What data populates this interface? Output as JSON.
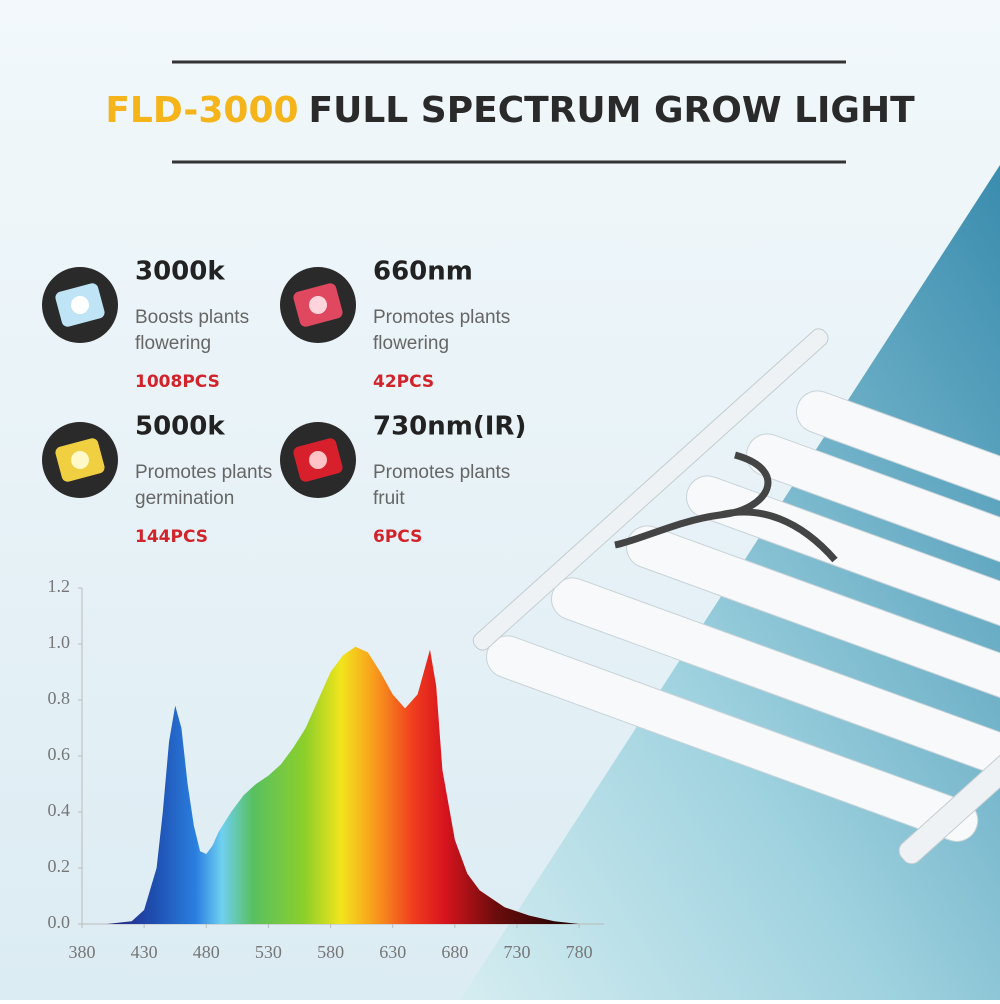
{
  "header": {
    "model": "FLD-3000",
    "title": "FULL SPECTRUM GROW LIGHT"
  },
  "features": [
    {
      "title": "3000k",
      "desc": [
        "Boosts plants",
        "flowering"
      ],
      "count": "1008PCS"
    },
    {
      "title": "660nm",
      "desc": [
        "Promotes plants",
        "flowering"
      ],
      "count": "42PCS"
    },
    {
      "title": "5000k",
      "desc": [
        "Promotes plants",
        "germination"
      ],
      "count": "144PCS"
    },
    {
      "title": "730nm(IR)",
      "desc": [
        "Promotes plants",
        "fruit"
      ],
      "count": "6PCS"
    }
  ],
  "chart_data": {
    "type": "area",
    "x": [
      380,
      400,
      420,
      430,
      440,
      445,
      450,
      455,
      460,
      465,
      470,
      475,
      480,
      485,
      490,
      500,
      510,
      520,
      530,
      540,
      550,
      560,
      570,
      580,
      590,
      600,
      610,
      620,
      630,
      640,
      650,
      655,
      660,
      665,
      670,
      680,
      690,
      700,
      720,
      740,
      760,
      780,
      800
    ],
    "values": [
      0,
      0,
      0.01,
      0.05,
      0.2,
      0.4,
      0.65,
      0.78,
      0.7,
      0.5,
      0.35,
      0.26,
      0.25,
      0.28,
      0.33,
      0.4,
      0.46,
      0.5,
      0.53,
      0.57,
      0.63,
      0.7,
      0.8,
      0.9,
      0.96,
      0.99,
      0.97,
      0.9,
      0.82,
      0.77,
      0.82,
      0.9,
      0.98,
      0.85,
      0.55,
      0.3,
      0.18,
      0.12,
      0.06,
      0.03,
      0.01,
      0,
      0
    ],
    "xlim": [
      380,
      800
    ],
    "ylim": [
      0,
      1.2
    ],
    "xticks": [
      380,
      430,
      480,
      530,
      580,
      630,
      680,
      730,
      780
    ],
    "yticks": [
      {
        "value": 0,
        "label": "0.0"
      },
      {
        "value": 0.2,
        "label": "0.2"
      },
      {
        "value": 0.4,
        "label": "0.4"
      },
      {
        "value": 0.6,
        "label": "0.6"
      },
      {
        "value": 0.8,
        "label": "0.8"
      },
      {
        "value": 1,
        "label": "1.0"
      },
      {
        "value": 1.2,
        "label": "1.2"
      }
    ]
  }
}
